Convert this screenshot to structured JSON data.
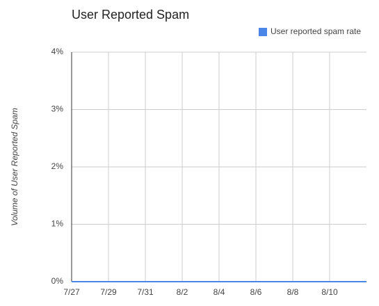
{
  "chart_data": {
    "type": "line",
    "title": "User Reported Spam",
    "y_label": "Volume of User Reported Spam",
    "categories": [
      "7/27",
      null,
      "7/29",
      null,
      "7/31",
      null,
      "8/2",
      null,
      "8/4",
      null,
      "8/6",
      null,
      "8/8",
      null,
      "8/10",
      null,
      null
    ],
    "series": [
      {
        "name": "User reported spam rate",
        "color": "#4a86e8",
        "values": [
          0,
          0,
          0,
          0,
          0,
          0,
          0,
          0,
          0,
          0,
          0,
          0,
          0,
          0,
          0,
          0,
          0
        ]
      }
    ],
    "ylim": [
      0,
      4
    ],
    "yticks": [
      {
        "value": 0,
        "label": "0%"
      },
      {
        "value": 1,
        "label": "1%"
      },
      {
        "value": 2,
        "label": "2%"
      },
      {
        "value": 3,
        "label": "3%"
      },
      {
        "value": 4,
        "label": "4%"
      }
    ],
    "grid": true,
    "legend": "top-right"
  }
}
